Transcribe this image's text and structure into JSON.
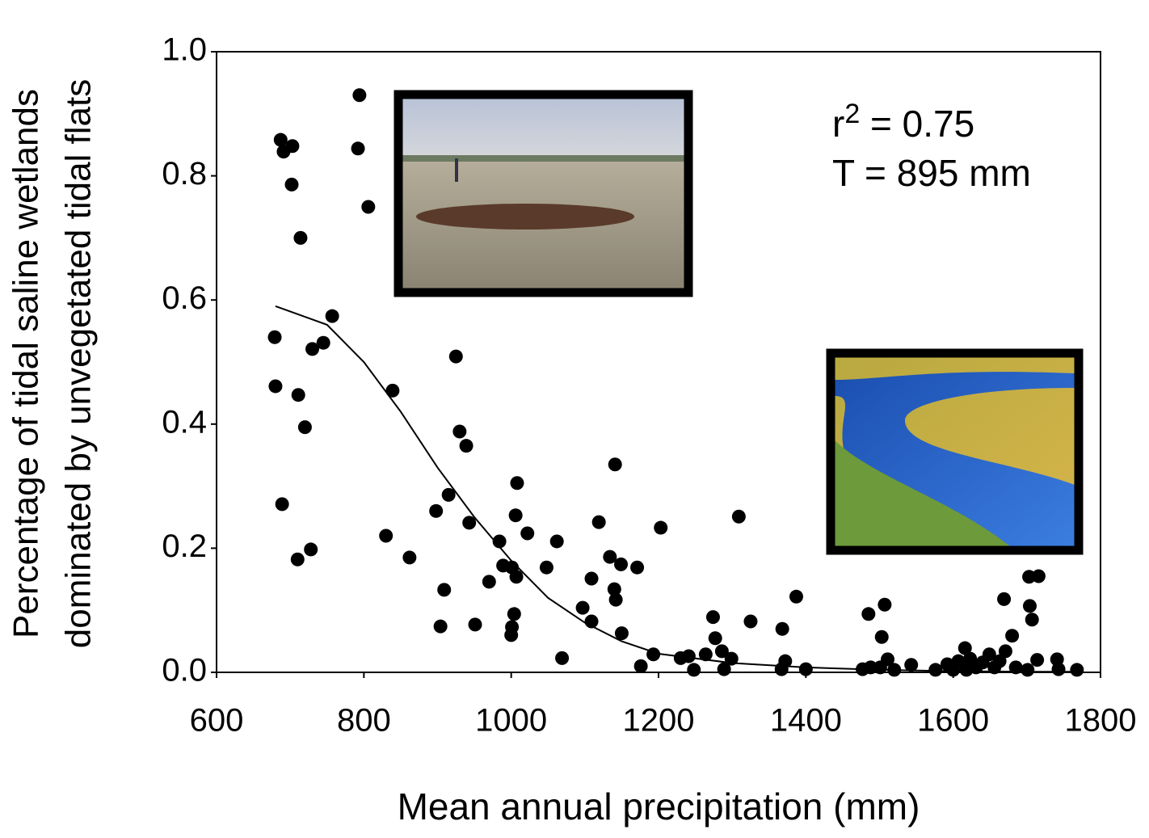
{
  "chart_data": {
    "type": "scatter",
    "xlabel": "Mean annual precipitation (mm)",
    "ylabel": [
      "Percentage of tidal saline wetlands",
      "dominated by unvegetated tidal flats"
    ],
    "annotations": [
      {
        "base": "r",
        "superscript": "2",
        "text": " = 0.75"
      },
      "T = 895 mm"
    ],
    "xlim": [
      600,
      1800
    ],
    "ylim": [
      0,
      1
    ],
    "xticks": [
      600,
      800,
      1000,
      1200,
      1400,
      1600,
      1800
    ],
    "yticks": [
      {
        "value": 0,
        "label": "0.0"
      },
      0.2,
      0.4,
      0.6,
      0.8,
      {
        "value": 1,
        "label": "1.0"
      }
    ],
    "series": [
      {
        "color": "#000000",
        "x": [
          687,
          691,
          703,
          702,
          714,
          679,
          680,
          711,
          720,
          689,
          710,
          728,
          730,
          745,
          757,
          794,
          792,
          806,
          839,
          830,
          862,
          925,
          930,
          939,
          915,
          898,
          909,
          904,
          943,
          951,
          984,
          989,
          1001,
          1007,
          970,
          1008,
          1006,
          1022,
          1004,
          1001,
          1000,
          1048,
          1062,
          1069,
          1097,
          1109,
          1109,
          1119,
          1134,
          1149,
          1140,
          1142,
          1141,
          1150,
          1171,
          1203,
          1193,
          1176,
          1230,
          1241,
          1248,
          1264,
          1274,
          1277,
          1286,
          1299,
          1309,
          1289,
          1325,
          1368,
          1372,
          1387,
          1367,
          1400,
          1485,
          1507,
          1503,
          1511,
          1477,
          1488,
          1501,
          1520,
          1543,
          1576,
          1592,
          1607,
          1616,
          1623,
          1631,
          1640,
          1649,
          1656,
          1669,
          1671,
          1680,
          1663,
          1685,
          1703,
          1716,
          1704,
          1707,
          1714,
          1701,
          1741,
          1743,
          1768,
          1600,
          1618
        ],
        "values": [
          0.858,
          0.839,
          0.848,
          0.786,
          0.7,
          0.54,
          0.461,
          0.447,
          0.395,
          0.271,
          0.182,
          0.198,
          0.521,
          0.531,
          0.574,
          0.93,
          0.844,
          0.75,
          0.454,
          0.22,
          0.185,
          0.509,
          0.388,
          0.365,
          0.286,
          0.26,
          0.133,
          0.074,
          0.241,
          0.077,
          0.211,
          0.172,
          0.169,
          0.154,
          0.146,
          0.305,
          0.253,
          0.224,
          0.094,
          0.073,
          0.06,
          0.169,
          0.211,
          0.023,
          0.104,
          0.151,
          0.082,
          0.242,
          0.186,
          0.174,
          0.134,
          0.117,
          0.335,
          0.063,
          0.169,
          0.233,
          0.029,
          0.01,
          0.023,
          0.026,
          0.004,
          0.029,
          0.089,
          0.055,
          0.034,
          0.022,
          0.251,
          0.005,
          0.082,
          0.07,
          0.018,
          0.122,
          0.005,
          0.005,
          0.094,
          0.109,
          0.057,
          0.021,
          0.005,
          0.008,
          0.008,
          0.004,
          0.012,
          0.004,
          0.013,
          0.018,
          0.039,
          0.022,
          0.008,
          0.016,
          0.029,
          0.008,
          0.118,
          0.034,
          0.059,
          0.018,
          0.008,
          0.154,
          0.155,
          0.107,
          0.085,
          0.02,
          0.004,
          0.021,
          0.005,
          0.004,
          0.004,
          0.004
        ]
      }
    ],
    "fit": {
      "color": "#000000",
      "x": [
        680,
        750,
        800,
        850,
        900,
        950,
        1000,
        1050,
        1100,
        1150,
        1200,
        1300,
        1400,
        1500,
        1600,
        1700,
        1765
      ],
      "values": [
        0.59,
        0.56,
        0.5,
        0.42,
        0.33,
        0.25,
        0.18,
        0.12,
        0.08,
        0.05,
        0.03,
        0.015,
        0.008,
        0.004,
        0.002,
        0.001,
        0.001
      ]
    }
  }
}
